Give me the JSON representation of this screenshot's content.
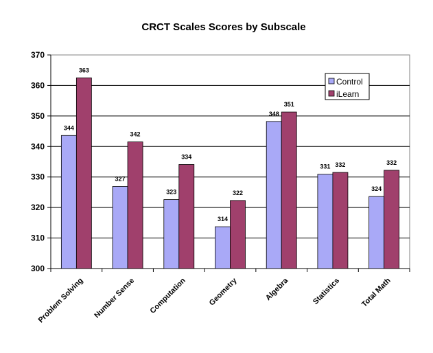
{
  "chart_data": {
    "type": "bar",
    "title": "CRCT Scales Scores by Subscale",
    "xlabel": "",
    "ylabel": "",
    "categories": [
      "Problem Solving",
      "Number Sense",
      "Computation",
      "Geometry",
      "Algebra",
      "Statistics",
      "Total Math"
    ],
    "series": [
      {
        "name": "Control",
        "color": "#a9a9f7",
        "values": [
          343.6,
          326.9,
          322.6,
          313.7,
          348.2,
          330.9,
          323.6
        ],
        "labels": [
          "344",
          "327",
          "323",
          "314",
          "348",
          "331",
          "324"
        ]
      },
      {
        "name": "iLearn",
        "color": "#a0406c",
        "values": [
          362.5,
          341.5,
          334.1,
          322.3,
          351.3,
          331.5,
          332.2
        ],
        "labels": [
          "363",
          "342",
          "334",
          "322",
          "351",
          "332",
          "332"
        ]
      }
    ],
    "ylim": [
      300,
      370
    ],
    "yticks": [
      300,
      310,
      320,
      330,
      340,
      350,
      360,
      370
    ],
    "grid": true,
    "legend_position": "top-right"
  }
}
